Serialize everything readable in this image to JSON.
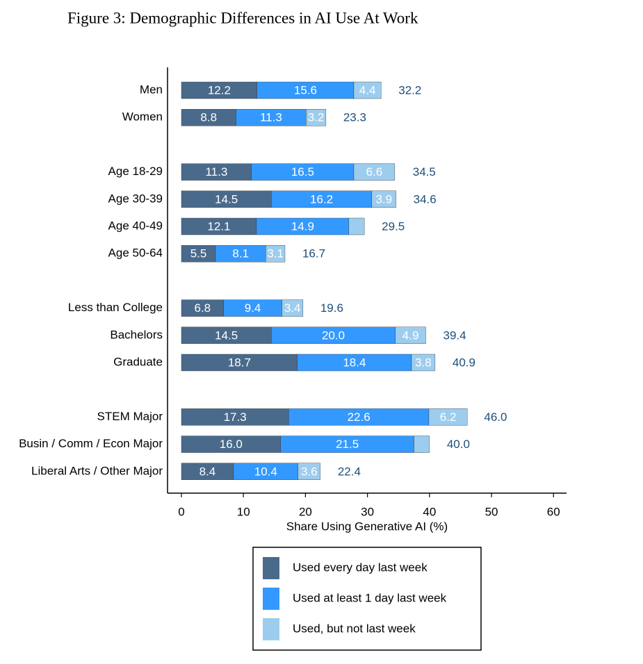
{
  "chart_data": {
    "type": "stacked_barh",
    "title": "Figure 3: Demographic Differences in AI Use At Work",
    "x_label": "Share Using Generative AI (%)",
    "categories": [
      "Men",
      "Women",
      null,
      "Age 18-29",
      "Age 30-39",
      "Age 40-49",
      "Age 50-64",
      null,
      "Less than College",
      "Bachelors",
      "Graduate",
      null,
      "STEM Major",
      "Busin / Comm / Econ Major",
      "Liberal Arts / Other Major"
    ],
    "series": [
      {
        "name": "Used every day last week",
        "color": "#4a6a8b",
        "values": [
          12.2,
          8.8,
          null,
          11.3,
          14.5,
          12.1,
          5.5,
          null,
          6.8,
          14.5,
          18.7,
          null,
          17.3,
          16.0,
          8.4
        ],
        "value_labels": [
          "12.2",
          "8.8",
          null,
          "11.3",
          "14.5",
          "12.1",
          "5.5",
          null,
          "6.8",
          "14.5",
          "18.7",
          null,
          "17.3",
          "16.0",
          "8.4"
        ]
      },
      {
        "name": "Used at least 1 day last week",
        "color": "#3399ff",
        "values": [
          15.6,
          11.3,
          null,
          16.5,
          16.2,
          14.9,
          8.1,
          null,
          9.4,
          20.0,
          18.4,
          null,
          22.6,
          21.5,
          10.4
        ],
        "value_labels": [
          "15.6",
          "11.3",
          null,
          "16.5",
          "16.2",
          "14.9",
          "8.1",
          null,
          "9.4",
          "20.0",
          "18.4",
          null,
          "22.6",
          "21.5",
          "10.4"
        ]
      },
      {
        "name": "Used, but not last week",
        "color": "#9dcdee",
        "values": [
          4.4,
          3.2,
          null,
          6.6,
          3.9,
          2.5,
          3.1,
          null,
          3.4,
          4.9,
          3.8,
          null,
          6.2,
          2.5,
          3.6
        ],
        "value_labels": [
          "4.4",
          "3.2",
          null,
          "6.6",
          "3.9",
          null,
          "3.1",
          null,
          "3.4",
          "4.9",
          "3.8",
          null,
          "6.2",
          null,
          "3.6"
        ]
      }
    ],
    "totals": [
      32.2,
      23.3,
      null,
      34.5,
      34.6,
      29.5,
      16.7,
      null,
      19.6,
      39.4,
      40.9,
      null,
      46.0,
      40.0,
      22.4
    ],
    "total_labels": [
      "32.2",
      "23.3",
      null,
      "34.5",
      "34.6",
      "29.5",
      "16.7",
      null,
      "19.6",
      "39.4",
      "40.9",
      null,
      "46.0",
      "40.0",
      "22.4"
    ],
    "xlim": [
      -2.24,
      62.1
    ],
    "xticks": [
      0,
      10,
      20,
      30,
      40,
      50,
      60
    ]
  }
}
